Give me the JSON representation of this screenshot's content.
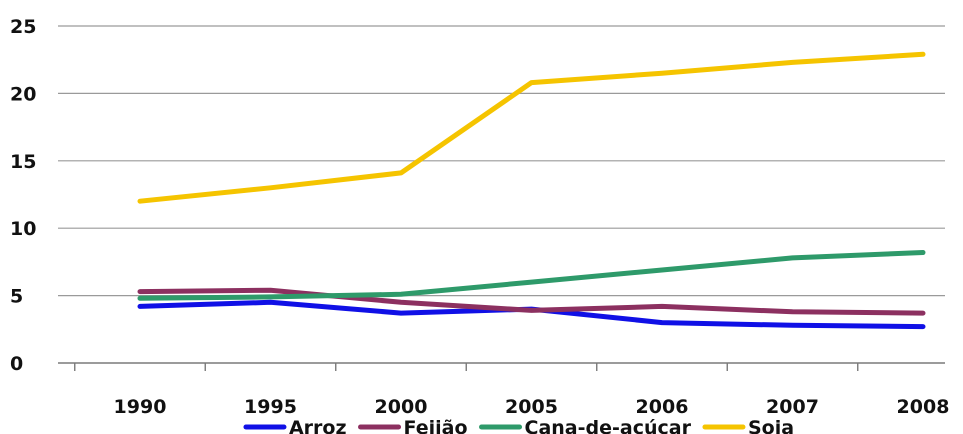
{
  "chart_data": {
    "type": "line",
    "title": "",
    "xlabel": "",
    "ylabel": "",
    "categories": [
      "1990",
      "1995",
      "2000",
      "2005",
      "2006",
      "2007",
      "2008"
    ],
    "ylim": [
      0,
      25
    ],
    "yticks": [
      0,
      5,
      10,
      15,
      20,
      25
    ],
    "grid": "horizontal",
    "legend_position": "bottom",
    "series": [
      {
        "name": "Arroz",
        "color": "#1010e6",
        "values": [
          4.2,
          4.5,
          3.7,
          4.0,
          3.0,
          2.8,
          2.7
        ]
      },
      {
        "name": "Feijão",
        "color": "#8c3060",
        "values": [
          5.3,
          5.4,
          4.5,
          3.9,
          4.2,
          3.8,
          3.7
        ]
      },
      {
        "name": "Cana-de-açúcar",
        "color": "#2e9a6a",
        "values": [
          4.8,
          4.9,
          5.1,
          6.0,
          6.9,
          7.8,
          8.2
        ]
      },
      {
        "name": "Soja",
        "color": "#f5c400",
        "values": [
          12.0,
          13.0,
          14.1,
          20.8,
          21.5,
          22.3,
          22.9
        ]
      }
    ]
  }
}
